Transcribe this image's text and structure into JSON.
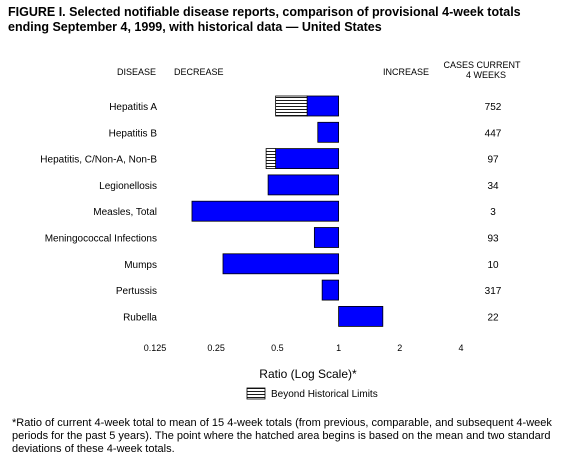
{
  "figure": {
    "title": "FIGURE I. Selected notifiable disease reports, comparison of provisional 4-week totals ending September 4, 1999, with historical data — United States",
    "footnote": "*Ratio of current 4-week total to mean of 15 4-week totals (from previous, comparable, and subsequent 4-week periods for the past 5 years). The point where the hatched area begins is based on the mean and two standard deviations of these 4-week totals."
  },
  "chart_data": {
    "type": "bar",
    "orientation": "horizontal",
    "scale": "log2",
    "headers": {
      "disease": "DISEASE",
      "decrease": "DECREASE",
      "increase": "INCREASE",
      "cases_line1": "CASES CURRENT",
      "cases_line2": "4 WEEKS"
    },
    "xlabel": "Ratio (Log Scale)*",
    "xlim": [
      0.125,
      4
    ],
    "xticks": [
      0.125,
      0.25,
      0.5,
      1,
      2,
      4
    ],
    "xtick_labels": [
      "0.125",
      "0.25",
      "0.5",
      "1",
      "2",
      "4"
    ],
    "baseline": 1,
    "legend": {
      "label": "Beyond Historical Limits",
      "position": "bottom-center"
    },
    "colors": {
      "bar": "#0000ff",
      "hatch_line": "#000000",
      "hatch_bg": "#ffffff"
    },
    "rows": [
      {
        "disease": "Hepatitis A",
        "ratio": 0.49,
        "hatch_start": 0.7,
        "cases": "752"
      },
      {
        "disease": "Hepatitis B",
        "ratio": 0.79,
        "hatch_start": null,
        "cases": "447"
      },
      {
        "disease": "Hepatitis, C/Non-A, Non-B",
        "ratio": 0.44,
        "hatch_start": 0.49,
        "cases": "97"
      },
      {
        "disease": "Legionellosis",
        "ratio": 0.45,
        "hatch_start": null,
        "cases": "34"
      },
      {
        "disease": "Measles, Total",
        "ratio": 0.19,
        "hatch_start": null,
        "cases": "3"
      },
      {
        "disease": "Meningococcal Infections",
        "ratio": 0.76,
        "hatch_start": null,
        "cases": "93"
      },
      {
        "disease": "Mumps",
        "ratio": 0.27,
        "hatch_start": null,
        "cases": "10"
      },
      {
        "disease": "Pertussis",
        "ratio": 0.83,
        "hatch_start": null,
        "cases": "317"
      },
      {
        "disease": "Rubella",
        "ratio": 1.65,
        "hatch_start": null,
        "cases": "22"
      }
    ]
  }
}
